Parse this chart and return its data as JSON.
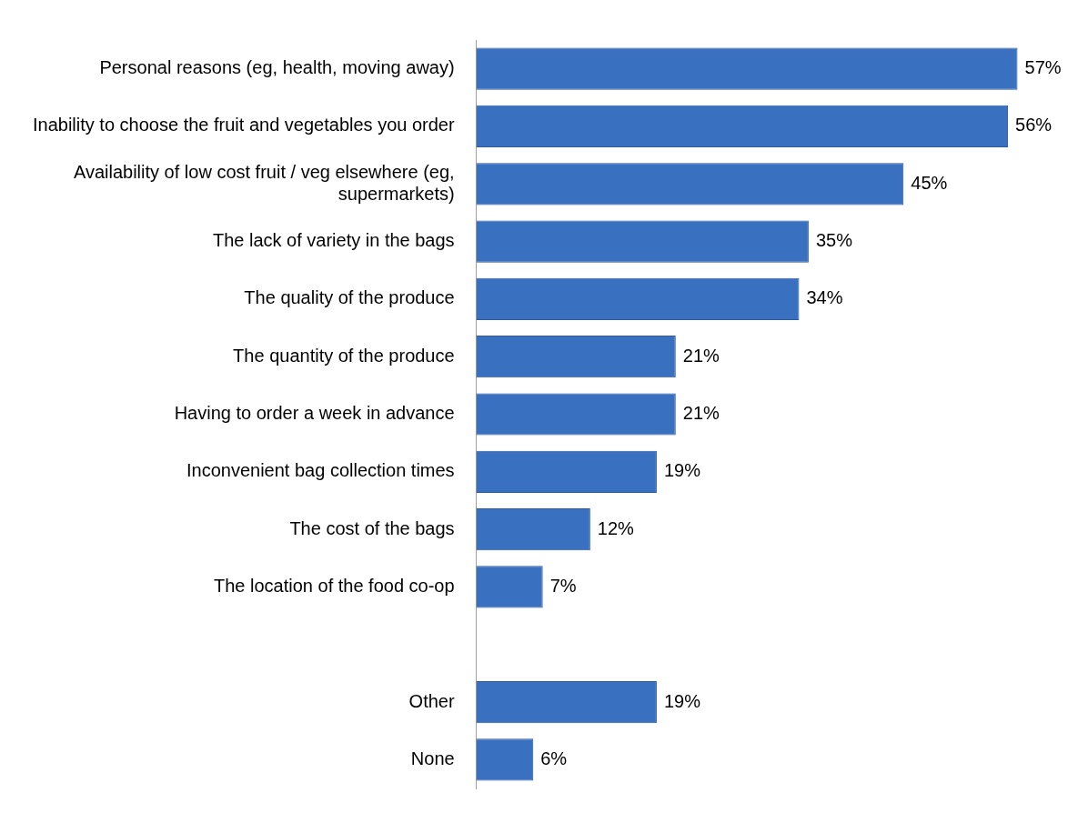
{
  "chart_data": {
    "type": "bar",
    "orientation": "horizontal",
    "categories": [
      "Personal reasons (eg, health, moving away)",
      "Inability to choose the fruit and vegetables you order",
      "Availability of low cost fruit / veg elsewhere (eg, supermarkets)",
      "The lack of variety in the bags",
      "The quality of the produce",
      "The quantity of the produce",
      "Having to order a week in advance",
      "Inconvenient bag collection times",
      "The cost of the bags",
      "The location of the food co-op",
      null,
      "Other",
      "None"
    ],
    "values": [
      57,
      56,
      45,
      35,
      34,
      21,
      21,
      19,
      12,
      7,
      null,
      19,
      6
    ],
    "value_labels": [
      "57%",
      "56%",
      "45%",
      "35%",
      "34%",
      "21%",
      "21%",
      "19%",
      "12%",
      "7%",
      null,
      "19%",
      "6%"
    ],
    "color": "#3a70c0",
    "grid": false,
    "legend": false
  }
}
